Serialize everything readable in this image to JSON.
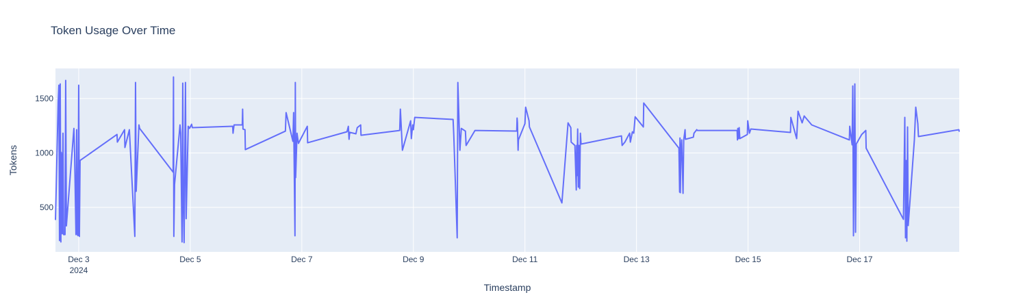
{
  "chart_data": {
    "type": "line",
    "title": "Token Usage Over Time",
    "x_label": "Timestamp",
    "y_label": "Tokens",
    "grid": true,
    "color": "#636efa",
    "xlim": [
      "2024-12-02T14:00",
      "2024-12-18T18:51"
    ],
    "ylim": [
      91,
      1777
    ],
    "yticks": [
      500,
      1000,
      1500
    ],
    "xticks": [
      {
        "value": "2024-12-03T00:00",
        "label": "Dec 3",
        "year": "2024"
      },
      {
        "value": "2024-12-05T00:00",
        "label": "Dec 5"
      },
      {
        "value": "2024-12-07T00:00",
        "label": "Dec 7"
      },
      {
        "value": "2024-12-09T00:00",
        "label": "Dec 9"
      },
      {
        "value": "2024-12-11T00:00",
        "label": "Dec 11"
      },
      {
        "value": "2024-12-13T00:00",
        "label": "Dec 13"
      },
      {
        "value": "2024-12-15T00:00",
        "label": "Dec 15"
      },
      {
        "value": "2024-12-17T00:00",
        "label": "Dec 17"
      }
    ],
    "x": [
      "2024-12-02T14:00",
      "2024-12-02T15:10",
      "2024-12-02T15:28",
      "2024-12-02T15:45",
      "2024-12-02T16:03",
      "2024-12-02T16:20",
      "2024-12-02T16:29",
      "2024-12-02T16:47",
      "2024-12-02T16:56",
      "2024-12-02T17:14",
      "2024-12-02T17:31",
      "2024-12-02T18:07",
      "2024-12-02T18:24",
      "2024-12-02T18:42",
      "2024-12-02T21:56",
      "2024-12-02T22:14",
      "2024-12-02T22:49",
      "2024-12-02T23:07",
      "2024-12-02T23:25",
      "2024-12-02T23:42",
      "2024-12-03T00:00",
      "2024-12-03T00:18",
      "2024-12-03T00:35",
      "2024-12-03T16:29",
      "2024-12-03T16:38",
      "2024-12-03T19:44",
      "2024-12-03T19:53",
      "2024-12-03T21:48",
      "2024-12-04T00:09",
      "2024-12-04T00:27",
      "2024-12-04T00:44",
      "2024-12-04T01:55",
      "2024-12-04T02:13",
      "2024-12-04T16:38",
      "2024-12-04T16:47",
      "2024-12-04T16:56",
      "2024-12-04T17:14",
      "2024-12-04T19:17",
      "2024-12-04T19:35",
      "2024-12-04T19:53",
      "2024-12-04T20:28",
      "2024-12-04T20:46",
      "2024-12-04T21:03",
      "2024-12-04T21:21",
      "2024-12-04T21:56",
      "2024-12-04T22:14",
      "2024-12-04T23:07",
      "2024-12-04T23:42",
      "2024-12-05T00:35",
      "2024-12-05T00:53",
      "2024-12-05T18:15",
      "2024-12-05T18:24",
      "2024-12-05T18:51",
      "2024-12-05T22:23",
      "2024-12-05T22:32",
      "2024-12-05T22:41",
      "2024-12-05T23:33",
      "2024-12-05T23:42",
      "2024-12-06T16:56",
      "2024-12-06T17:14",
      "2024-12-06T20:10",
      "2024-12-06T20:28",
      "2024-12-06T21:03",
      "2024-12-06T21:12",
      "2024-12-06T21:21",
      "2024-12-06T21:56",
      "2024-12-06T22:32",
      "2024-12-07T02:21",
      "2024-12-07T02:30",
      "2024-12-07T19:26",
      "2024-12-07T20:01",
      "2024-12-07T20:19",
      "2024-12-07T20:37",
      "2024-12-07T23:16",
      "2024-12-07T23:51",
      "2024-12-08T01:19",
      "2024-12-08T01:28",
      "2024-12-08T18:07",
      "2024-12-08T18:24",
      "2024-12-08T19:17",
      "2024-12-08T22:49",
      "2024-12-08T23:07",
      "2024-12-08T23:42",
      "2024-12-09T00:00",
      "2024-12-09T00:35",
      "2024-12-09T17:05",
      "2024-12-09T17:23",
      "2024-12-09T18:51",
      "2024-12-09T19:08",
      "2024-12-09T20:01",
      "2024-12-09T20:37",
      "2024-12-09T22:23",
      "2024-12-09T22:41",
      "2024-12-10T02:30",
      "2024-12-10T20:28",
      "2024-12-10T20:37",
      "2024-12-10T20:46",
      "2024-12-10T21:03",
      "2024-12-10T21:12",
      "2024-12-11T00:00",
      "2024-12-11T00:18",
      "2024-12-11T01:46",
      "2024-12-11T01:55",
      "2024-12-11T15:54",
      "2024-12-11T18:33",
      "2024-12-11T19:44",
      "2024-12-11T19:53",
      "2024-12-11T21:30",
      "2024-12-11T22:05",
      "2024-12-11T22:14",
      "2024-12-11T22:23",
      "2024-12-11T22:41",
      "2024-12-11T22:58",
      "2024-12-11T23:16",
      "2024-12-11T23:33",
      "2024-12-11T23:51",
      "2024-12-12T00:09",
      "2024-12-12T17:31",
      "2024-12-12T17:49",
      "2024-12-12T19:00",
      "2024-12-12T21:03",
      "2024-12-12T21:21",
      "2024-12-12T22:14",
      "2024-12-12T22:49",
      "2024-12-12T23:25",
      "2024-12-13T02:57",
      "2024-12-13T03:06",
      "2024-12-13T18:15",
      "2024-12-13T18:33",
      "2024-12-13T18:42",
      "2024-12-13T18:51",
      "2024-12-13T19:08",
      "2024-12-13T19:26",
      "2024-12-13T20:01",
      "2024-12-13T20:19",
      "2024-12-13T20:54",
      "2024-12-13T21:03",
      "2024-12-14T00:27",
      "2024-12-14T00:44",
      "2024-12-14T01:55",
      "2024-12-14T02:13",
      "2024-12-14T19:17",
      "2024-12-14T19:26",
      "2024-12-14T19:35",
      "2024-12-14T19:53",
      "2024-12-14T20:10",
      "2024-12-14T20:28",
      "2024-12-14T23:42",
      "2024-12-14T23:51",
      "2024-12-15T00:35",
      "2024-12-15T01:11",
      "2024-12-15T18:15",
      "2024-12-15T18:24",
      "2024-12-15T20:54",
      "2024-12-15T21:30",
      "2024-12-15T23:16",
      "2024-12-16T00:09",
      "2024-12-16T03:23",
      "2024-12-16T19:35",
      "2024-12-16T19:44",
      "2024-12-16T20:46",
      "2024-12-16T21:03",
      "2024-12-16T21:21",
      "2024-12-16T21:56",
      "2024-12-16T22:14",
      "2024-12-16T22:32",
      "2024-12-17T00:53",
      "2024-12-17T02:39",
      "2024-12-17T02:48",
      "2024-12-17T18:51",
      "2024-12-17T19:26",
      "2024-12-17T19:44",
      "2024-12-17T20:01",
      "2024-12-17T20:19",
      "2024-12-17T20:37",
      "2024-12-17T20:54",
      "2024-12-17T23:33",
      "2024-12-18T00:09",
      "2024-12-18T01:02",
      "2024-12-18T01:19",
      "2024-12-18T18:42",
      "2024-12-18T18:51"
    ],
    "values": [
      384,
      1465,
      1623,
      195,
      1635,
      182,
      1006,
      960,
      258,
      1182,
      250,
      250,
      1667,
      330,
      1226,
      1000,
      250,
      1214,
      250,
      240,
      1623,
      233,
      931,
      1170,
      1100,
      1214,
      1050,
      1214,
      233,
      1648,
      648,
      1258,
      1226,
      824,
      1698,
      233,
      710,
      1182,
      1258,
      1182,
      182,
      1642,
      522,
      176,
      1648,
      396,
      1245,
      1226,
      1264,
      1233,
      1245,
      1182,
      1258,
      1258,
      1403,
      1220,
      1214,
      1031,
      1201,
      1371,
      1107,
      1371,
      239,
      1648,
      774,
      1182,
      1088,
      1245,
      1094,
      1195,
      1245,
      1126,
      1190,
      1176,
      1233,
      1258,
      1163,
      1207,
      1403,
      1025,
      1296,
      1132,
      1258,
      1214,
      1327,
      1308,
      1163,
      220,
      1648,
      1025,
      1226,
      1201,
      1069,
      1207,
      1201,
      1321,
      1277,
      1025,
      1120,
      1270,
      1421,
      1296,
      1240,
      541,
      1277,
      1233,
      1100,
      1069,
      660,
      1069,
      792,
      1220,
      686,
      1069,
      673,
      1182,
      1082,
      1157,
      1069,
      1100,
      1182,
      1100,
      1195,
      1182,
      1333,
      1239,
      1459,
      1044,
      641,
      1138,
      635,
      1025,
      1120,
      629,
      1120,
      1214,
      1126,
      1145,
      1182,
      1214,
      1207,
      1207,
      1120,
      1226,
      1132,
      1233,
      1132,
      1170,
      1296,
      1182,
      1220,
      1189,
      1327,
      1132,
      1384,
      1277,
      1340,
      1258,
      1120,
      1245,
      1075,
      1616,
      239,
      1635,
      271,
      1082,
      1170,
      1207,
      1044,
      390,
      1327,
      220,
      931,
      189,
      1239,
      333,
      1120,
      1421,
      1270,
      1151,
      1214,
      1195
    ]
  }
}
